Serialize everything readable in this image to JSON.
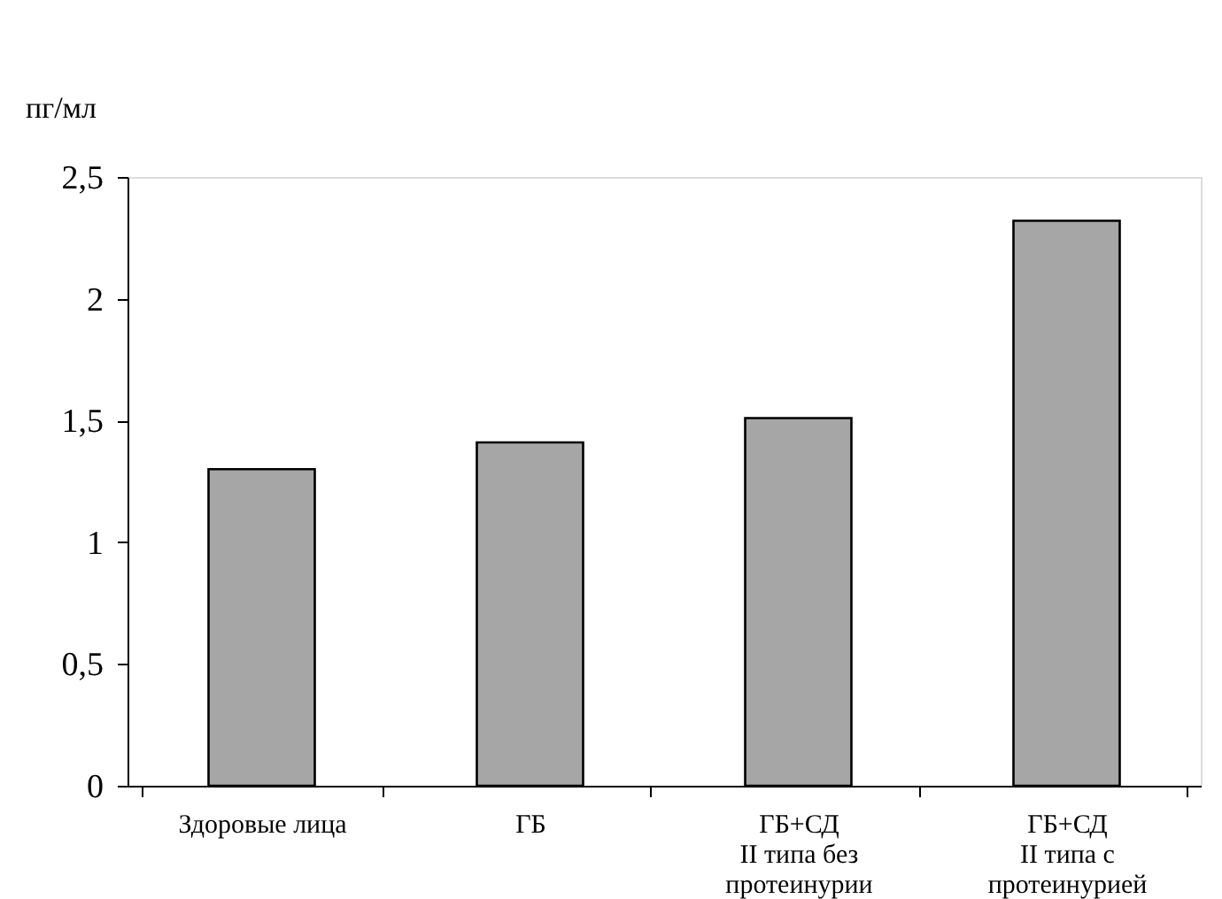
{
  "chart_data": {
    "type": "bar",
    "ylabel": "пг/мл",
    "categories": [
      "Здоровые лица",
      "ГБ",
      "ГБ+СД\nII типа без\nпротеинурии",
      "ГБ+СД\nII типа с\nпротеинурией"
    ],
    "values": [
      1.3,
      1.41,
      1.51,
      2.32
    ],
    "color": "#a6a6a6",
    "ylim": [
      0,
      2.5
    ],
    "yticks": [
      0,
      {
        "value": 0.5,
        "label": "0,5"
      },
      1,
      {
        "value": 1.5,
        "label": "1,5"
      },
      2,
      {
        "value": 2.5,
        "label": "2,5"
      }
    ],
    "grid": false
  }
}
